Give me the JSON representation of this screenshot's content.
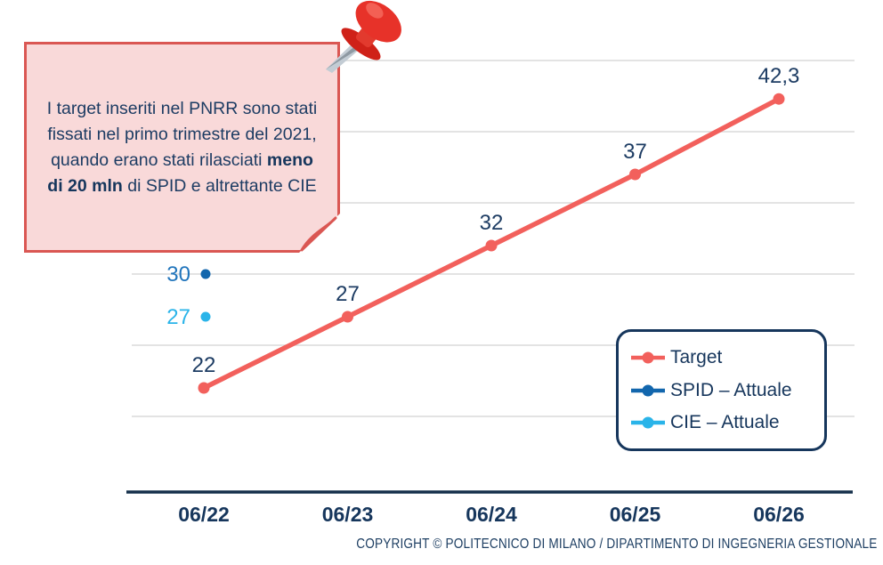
{
  "note": {
    "segments": [
      {
        "text": "I target inseriti nel PNRR sono stati fissati nel primo trimestre del 2021, quando erano stati rilasciati ",
        "bold": false
      },
      {
        "text": "meno di 20 mln",
        "bold": true
      },
      {
        "text": " di SPID e altrettante CIE",
        "bold": false
      }
    ]
  },
  "footer": {
    "copyright": "COPYRIGHT © POLITECNICO DI MILANO / DIPARTIMENTO DI INGEGNERIA GESTIONALE"
  },
  "icons": {
    "pushpin": "red-pushpin-icon",
    "note_fold": "folded-corner"
  },
  "chart_data": {
    "type": "line",
    "title": "",
    "xlabel": "",
    "ylabel": "",
    "categories": [
      "06/22",
      "06/23",
      "06/24",
      "06/25",
      "06/26"
    ],
    "series": [
      {
        "name": "Target",
        "color": "#f2605c",
        "values": [
          22,
          27,
          32,
          37,
          42.3
        ],
        "point_labels": [
          "22",
          "27",
          "32",
          "37",
          "42,3"
        ]
      }
    ],
    "markers": [
      {
        "name": "SPID – Attuale",
        "color": "#1266ad",
        "label_color": "#2175bc",
        "value": 30,
        "label": "30",
        "category": "06/22"
      },
      {
        "name": "CIE – Attuale",
        "color": "#2ab4e9",
        "label_color": "#2ab4e9",
        "value": 27,
        "label": "27",
        "category": "06/22"
      }
    ],
    "ylim": [
      20,
      45
    ],
    "y_gridlines": [
      20,
      25,
      30,
      35,
      40,
      45
    ],
    "grid": "horizontal-only",
    "legend_position": "inside-bottom-right",
    "colors": {
      "navy_text": "#16365c",
      "gridline": "#dadada",
      "axis_line": "#15304b"
    }
  }
}
